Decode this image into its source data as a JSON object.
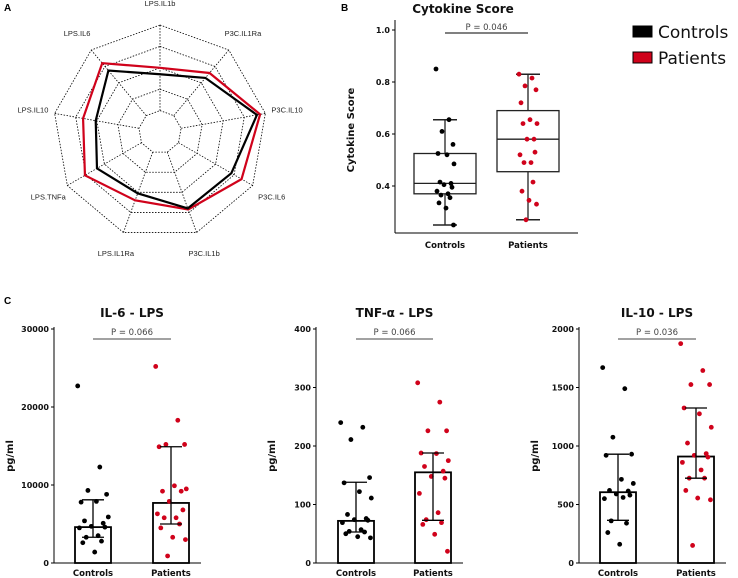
{
  "colors": {
    "controls": "#000000",
    "patients": "#d0021b",
    "grid": "#000000"
  },
  "panels": {
    "a": "A",
    "b": "B",
    "c": "C"
  },
  "legend": [
    {
      "label": "Controls",
      "color": "#000000"
    },
    {
      "label": "Patients",
      "color": "#d0021b"
    }
  ],
  "chart_data": [
    {
      "type": "radar",
      "axes": [
        "LPS.IL1b",
        "P3C.IL1Ra",
        "P3C.IL10",
        "P3C.IL6",
        "P3C.IL1b",
        "LPS.IL1Ra",
        "LPS.TNFa",
        "LPS.IL10",
        "LPS.IL6"
      ],
      "rings": 5,
      "range": [
        0,
        1
      ],
      "series": [
        {
          "name": "Controls",
          "values": [
            0.54,
            0.66,
            0.92,
            0.77,
            0.76,
            0.61,
            0.68,
            0.61,
            0.75
          ]
        },
        {
          "name": "Patients",
          "values": [
            0.6,
            0.72,
            0.95,
            0.88,
            0.77,
            0.68,
            0.81,
            0.73,
            0.84
          ]
        }
      ]
    },
    {
      "type": "box",
      "title": "Cytokine Score",
      "ylabel": "Cytokine Score",
      "ylim": [
        0.2,
        1.0
      ],
      "yticks": [
        "0.4",
        "0.6",
        "0.8",
        "1.0"
      ],
      "categories": [
        "Controls",
        "Patients"
      ],
      "pvalue": "P = 0.046",
      "series": [
        {
          "name": "Controls",
          "q1": 0.37,
          "median": 0.41,
          "q3": 0.525,
          "whisker_low": 0.25,
          "whisker_high": 0.655,
          "points": [
            0.85,
            0.655,
            0.61,
            0.56,
            0.525,
            0.52,
            0.485,
            0.415,
            0.41,
            0.405,
            0.395,
            0.38,
            0.37,
            0.365,
            0.355,
            0.335,
            0.315,
            0.25
          ]
        },
        {
          "name": "Patients",
          "q1": 0.455,
          "median": 0.58,
          "q3": 0.69,
          "whisker_low": 0.27,
          "whisker_high": 0.83,
          "points": [
            0.83,
            0.815,
            0.785,
            0.77,
            0.72,
            0.655,
            0.64,
            0.64,
            0.58,
            0.58,
            0.53,
            0.52,
            0.49,
            0.49,
            0.415,
            0.38,
            0.345,
            0.33,
            0.27
          ]
        }
      ]
    },
    {
      "type": "bar",
      "title": "IL-6 - LPS",
      "ylabel": "pg/ml",
      "ylim": [
        0,
        30000
      ],
      "yticks": [
        "0",
        "10000",
        "20000",
        "30000"
      ],
      "categories": [
        "Controls",
        "Patients"
      ],
      "pvalue": "P = 0.066",
      "series": [
        {
          "name": "Controls",
          "value": 4600,
          "err_low": 3300,
          "err_high": 8100,
          "points": [
            22700,
            12300,
            9300,
            8800,
            7800,
            7900,
            5900,
            5400,
            5100,
            4700,
            4600,
            4500,
            3500,
            3300,
            2800,
            2600,
            1400
          ]
        },
        {
          "name": "Patients",
          "value": 7700,
          "err_low": 5000,
          "err_high": 14900,
          "points": [
            25200,
            18300,
            15200,
            15200,
            14900,
            9900,
            9500,
            9200,
            9200,
            7900,
            6800,
            6300,
            5800,
            5800,
            5000,
            4500,
            3300,
            3000,
            900
          ]
        }
      ]
    },
    {
      "type": "bar",
      "title": "TNF-α - LPS",
      "ylabel": "pg/ml",
      "ylim": [
        0,
        400
      ],
      "yticks": [
        "0",
        "100",
        "200",
        "300",
        "400"
      ],
      "categories": [
        "Controls",
        "Patients"
      ],
      "pvalue": "P = 0.066",
      "series": [
        {
          "name": "Controls",
          "value": 72,
          "err_low": 53,
          "err_high": 138,
          "points": [
            240,
            232,
            211,
            146,
            137,
            122,
            111,
            83,
            76,
            74,
            73,
            69,
            57,
            54,
            53,
            50,
            45,
            43
          ]
        },
        {
          "name": "Patients",
          "value": 155,
          "err_low": 73,
          "err_high": 188,
          "points": [
            308,
            275,
            226,
            226,
            188,
            187,
            175,
            165,
            157,
            148,
            145,
            119,
            86,
            74,
            69,
            66,
            49,
            20
          ]
        }
      ]
    },
    {
      "type": "bar",
      "title": "IL-10 - LPS",
      "ylabel": "pg/ml",
      "ylim": [
        0,
        2000
      ],
      "yticks": [
        "0",
        "500",
        "1000",
        "1500",
        "2000"
      ],
      "categories": [
        "Controls",
        "Patients"
      ],
      "pvalue": "P = 0.036",
      "series": [
        {
          "name": "Controls",
          "value": 605,
          "err_low": 365,
          "err_high": 930,
          "points": [
            1670,
            1490,
            1075,
            930,
            920,
            715,
            680,
            620,
            615,
            590,
            580,
            550,
            560,
            360,
            340,
            260,
            160
          ]
        },
        {
          "name": "Patients",
          "value": 910,
          "err_low": 725,
          "err_high": 1325,
          "points": [
            1875,
            1645,
            1525,
            1525,
            1325,
            1275,
            1160,
            1025,
            935,
            920,
            905,
            860,
            795,
            725,
            725,
            620,
            555,
            540,
            150
          ]
        }
      ]
    }
  ]
}
